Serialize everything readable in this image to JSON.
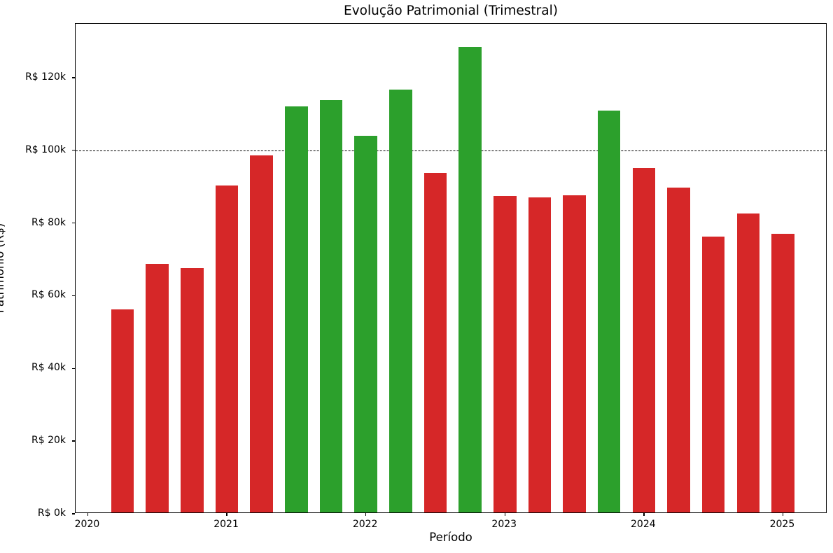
{
  "figure": {
    "background_color": "#ffffff"
  },
  "chart_data": {
    "type": "bar",
    "title": "Evolução Patrimonial (Trimestral)",
    "xlabel": "Período",
    "ylabel": "Patrimônio (R$)",
    "value_unit": "R$ thousands",
    "periods": [
      "2020-Q2",
      "2020-Q3",
      "2020-Q4",
      "2021-Q1",
      "2021-Q2",
      "2021-Q3",
      "2021-Q4",
      "2022-Q1",
      "2022-Q2",
      "2022-Q3",
      "2022-Q4",
      "2023-Q1",
      "2023-Q2",
      "2023-Q3",
      "2023-Q4",
      "2024-Q1",
      "2024-Q2",
      "2024-Q3",
      "2024-Q4",
      "2025-Q1"
    ],
    "x": [
      2020.25,
      2020.5,
      2020.75,
      2021.0,
      2021.25,
      2021.5,
      2021.75,
      2022.0,
      2022.25,
      2022.5,
      2022.75,
      2023.0,
      2023.25,
      2023.5,
      2023.75,
      2024.0,
      2024.25,
      2024.5,
      2024.75,
      2025.0
    ],
    "values_k": [
      55.8,
      68.4,
      67.2,
      90.0,
      98.3,
      111.6,
      113.4,
      103.6,
      116.4,
      93.4,
      128.1,
      87.1,
      86.7,
      87.3,
      110.5,
      94.7,
      89.3,
      75.9,
      82.2,
      76.7
    ],
    "bar_color_rule": {
      "threshold_k": 100,
      "above_color": "#2ca02c",
      "below_color": "#d62728"
    },
    "reference_line": {
      "value_k": 100,
      "color": "#000000",
      "style": "dashed"
    },
    "x_ticks": [
      2020,
      2021,
      2022,
      2023,
      2024,
      2025
    ],
    "x_tick_labels": [
      "2020",
      "2021",
      "2022",
      "2023",
      "2024",
      "2025"
    ],
    "y_ticks_k": [
      0,
      20,
      40,
      60,
      80,
      100,
      120
    ],
    "y_tick_labels": [
      "R$ 0k",
      "R$ 20k",
      "R$ 40k",
      "R$ 60k",
      "R$ 80k",
      "R$ 100k",
      "R$ 120k"
    ],
    "xlim": [
      2019.912,
      2025.32
    ],
    "ylim_k": [
      0,
      134.8
    ],
    "bar_width_years": 0.164,
    "grid": false,
    "legend": null
  }
}
